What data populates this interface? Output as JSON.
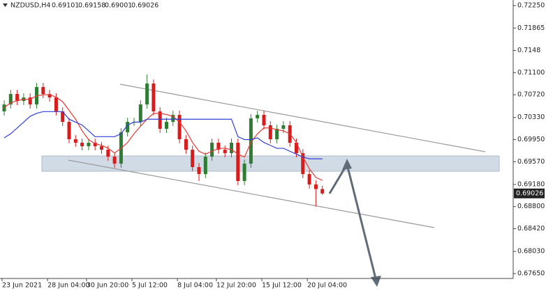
{
  "chart_data": {
    "type": "candlestick",
    "symbol": "NZDUSD,H4",
    "ylim": [
      0.67566,
      0.72346
    ],
    "yticks": [
      {
        "value": 0.7225,
        "label": "0.72250"
      },
      0.71865,
      0.7148,
      {
        "value": 0.711,
        "label": "0.71100"
      },
      {
        "value": 0.7072,
        "label": "0.70720"
      },
      {
        "value": 0.7033,
        "label": "0.70330"
      },
      {
        "value": 0.6995,
        "label": "0.69950"
      },
      {
        "value": 0.6957,
        "label": "0.69570"
      },
      {
        "value": 0.6918,
        "label": "0.69180"
      },
      {
        "value": 0.688,
        "label": "0.68800"
      },
      {
        "value": 0.6842,
        "label": "0.68420"
      },
      {
        "value": 0.6803,
        "label": "0.68030"
      },
      {
        "value": 0.6765,
        "label": "0.67650"
      }
    ],
    "categories": [
      "23 Jun 2021",
      null,
      null,
      null,
      null,
      null,
      null,
      "28 Jun 04:00",
      null,
      null,
      null,
      null,
      null,
      "30 Jun 20:00",
      null,
      null,
      null,
      null,
      null,
      null,
      "5 Jul 12:00",
      null,
      null,
      null,
      null,
      null,
      null,
      "8 Jul 04:00",
      null,
      null,
      null,
      null,
      null,
      "12 Jul 20:00",
      null,
      null,
      null,
      null,
      null,
      null,
      "15 Jul 12:00",
      null,
      null,
      null,
      null,
      null,
      null,
      "20 Jul 04:00",
      null,
      null
    ],
    "open": [
      0.70434,
      0.70553,
      0.70732,
      0.70613,
      0.70673,
      0.70553,
      0.70852,
      0.70732,
      0.70673,
      0.70434,
      0.70254,
      0.69956,
      0.69896,
      0.69836,
      0.69896,
      0.69836,
      0.69776,
      0.69657,
      0.69537,
      0.70075,
      0.70254,
      0.70254,
      0.70553,
      0.70912,
      0.70434,
      0.70135,
      0.70254,
      0.70374,
      0.69956,
      0.69776,
      0.69478,
      0.69358,
      0.69657,
      0.69896,
      0.69776,
      0.69717,
      0.69896,
      0.69239,
      0.69537,
      0.70314,
      0.70374,
      0.70195,
      0.69956,
      0.70135,
      0.70195,
      0.69896,
      0.69717,
      0.69358,
      0.69179,
      0.69101
    ],
    "high": [
      0.70623,
      0.70802,
      0.70802,
      0.70743,
      0.70743,
      0.70922,
      0.70922,
      0.70802,
      0.70743,
      0.70504,
      0.70324,
      0.70026,
      0.69966,
      0.69966,
      0.69966,
      0.69906,
      0.69846,
      0.69727,
      0.70145,
      0.70324,
      0.70324,
      0.70623,
      0.71067,
      0.70982,
      0.70504,
      0.70324,
      0.70444,
      0.70444,
      0.70026,
      0.69846,
      0.69548,
      0.69727,
      0.69966,
      0.69966,
      0.69846,
      0.69966,
      0.69966,
      0.69607,
      0.70384,
      0.70444,
      0.70444,
      0.70265,
      0.70205,
      0.70265,
      0.70265,
      0.69966,
      0.69787,
      0.69428,
      0.69249,
      0.69158
    ],
    "low": [
      0.70364,
      0.70483,
      0.70543,
      0.70543,
      0.70483,
      0.70483,
      0.70662,
      0.70603,
      0.70364,
      0.70184,
      0.69886,
      0.69826,
      0.69766,
      0.69766,
      0.69766,
      0.69706,
      0.69587,
      0.69467,
      0.69467,
      0.70005,
      0.70184,
      0.70184,
      0.70483,
      0.70364,
      0.70065,
      0.70065,
      0.70184,
      0.69886,
      0.69706,
      0.69408,
      0.69238,
      0.69288,
      0.69587,
      0.69706,
      0.69647,
      0.69647,
      0.69169,
      0.69169,
      0.69467,
      0.70244,
      0.70125,
      0.69886,
      0.69886,
      0.70065,
      0.69826,
      0.69647,
      0.69288,
      0.69109,
      0.688,
      0.69001
    ],
    "close": [
      0.70553,
      0.70732,
      0.70613,
      0.70673,
      0.70553,
      0.70852,
      0.70732,
      0.70673,
      0.70434,
      0.70254,
      0.69956,
      0.69896,
      0.69836,
      0.69896,
      0.69836,
      0.69776,
      0.69657,
      0.69537,
      0.70075,
      0.70254,
      0.70254,
      0.70553,
      0.70912,
      0.70434,
      0.70135,
      0.70254,
      0.70374,
      0.69956,
      0.69776,
      0.69478,
      0.69358,
      0.69657,
      0.69896,
      0.69776,
      0.69717,
      0.69896,
      0.69239,
      0.69537,
      0.70314,
      0.70374,
      0.70195,
      0.69956,
      0.70135,
      0.70195,
      0.69896,
      0.69717,
      0.69358,
      0.69179,
      0.69101,
      0.69026
    ],
    "up_color": "#2f7d32",
    "down_color": "#d81b1b",
    "series": [
      {
        "color": "#e53935",
        "values": [
          0.705,
          0.7058,
          0.7062,
          0.7064,
          0.7064,
          0.707,
          0.7072,
          0.7072,
          0.7068,
          0.706,
          0.7045,
          0.703,
          0.701,
          0.6995,
          0.6988,
          0.6985,
          0.698,
          0.6972,
          0.698,
          0.699,
          0.7005,
          0.7018,
          0.703,
          0.704,
          0.704,
          0.7038,
          0.7035,
          0.7025,
          0.701,
          0.699,
          0.6975,
          0.697,
          0.6975,
          0.698,
          0.698,
          0.6978,
          0.697,
          0.6965,
          0.699,
          0.7005,
          0.7015,
          0.7015,
          0.7012,
          0.701,
          0.7005,
          0.699,
          0.6965,
          0.6945,
          0.693,
          0.6925
        ]
      },
      {
        "color": "#2f3fd6",
        "values": [
          0.6998,
          0.7005,
          0.7015,
          0.7025,
          0.7035,
          0.704,
          0.7043,
          0.7043,
          0.7043,
          0.7043,
          0.703,
          0.7025,
          0.702,
          0.701,
          0.7,
          0.7,
          0.7,
          0.7,
          0.7005,
          0.702,
          0.7025,
          0.7025,
          0.703,
          0.703,
          0.703,
          0.703,
          0.703,
          0.703,
          0.703,
          0.703,
          0.703,
          0.703,
          0.703,
          0.703,
          0.703,
          0.703,
          0.7,
          0.6995,
          0.6995,
          0.6998,
          0.699,
          0.6985,
          0.698,
          0.698,
          0.6975,
          0.697,
          0.6965,
          0.6962,
          0.6962,
          0.6962
        ]
      }
    ]
  }
}
